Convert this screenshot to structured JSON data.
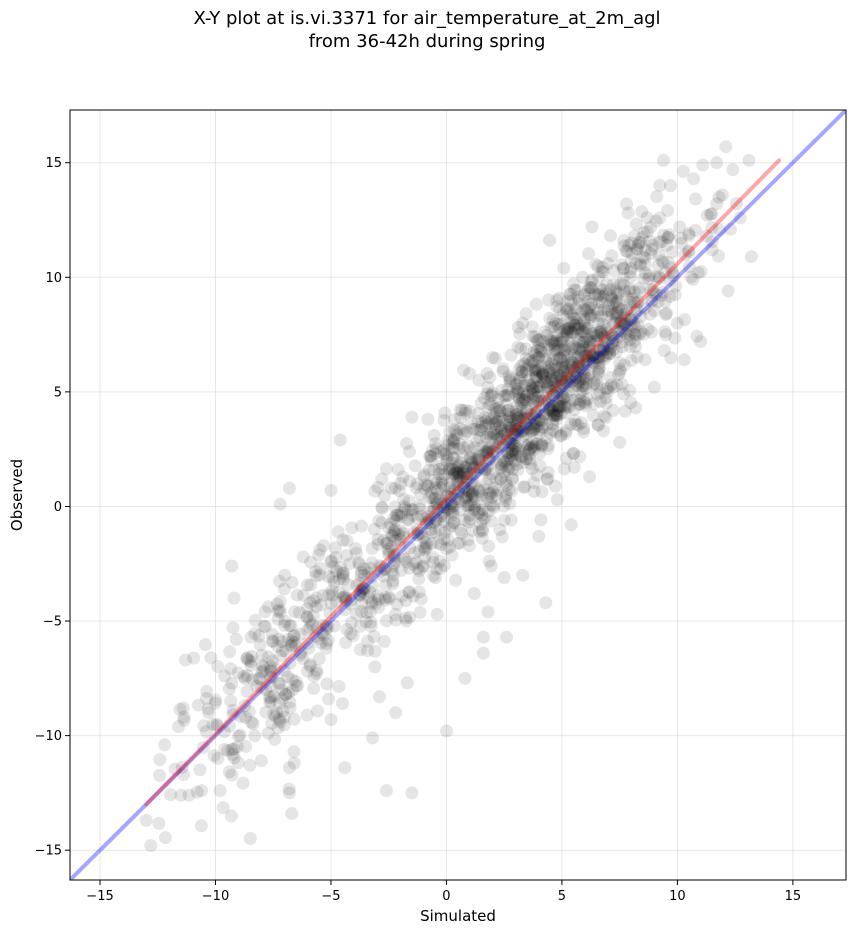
{
  "chart_data": {
    "type": "scatter",
    "title_lines": [
      "X-Y plot at is.vi.3371 for air_temperature_at_2m_agl",
      "from 36-42h during spring"
    ],
    "xlabel": "Simulated",
    "ylabel": "Observed",
    "xlim": [
      -16.3,
      17.3
    ],
    "ylim": [
      -16.3,
      17.3
    ],
    "xticks": [
      -15,
      -10,
      -5,
      0,
      5,
      10,
      15
    ],
    "yticks": [
      -15,
      -10,
      -5,
      0,
      5,
      10,
      15
    ],
    "tick_labels": [
      "−15",
      "−10",
      "−5",
      "0",
      "5",
      "10",
      "15"
    ],
    "grid": true,
    "point_color": "#000000",
    "point_alpha": 0.1,
    "point_count_approx": 1800,
    "sample_points": [
      {
        "x": -12.8,
        "y": -14.8
      },
      {
        "x": -13.0,
        "y": -13.7
      },
      {
        "x": -12.2,
        "y": -10.4
      },
      {
        "x": -11.5,
        "y": -12.6
      },
      {
        "x": -10.6,
        "y": -12.4
      },
      {
        "x": -9.8,
        "y": -12.4
      },
      {
        "x": -11.6,
        "y": -9.6
      },
      {
        "x": -9.6,
        "y": -10.6
      },
      {
        "x": -9.9,
        "y": -11.0
      },
      {
        "x": -10.3,
        "y": -9.0
      },
      {
        "x": -11.3,
        "y": -6.7
      },
      {
        "x": -10.2,
        "y": -6.6
      },
      {
        "x": -9.6,
        "y": -7.4
      },
      {
        "x": -9.1,
        "y": -5.8
      },
      {
        "x": -9.2,
        "y": -4.0
      },
      {
        "x": -9.3,
        "y": -2.6
      },
      {
        "x": -8.7,
        "y": -9.2
      },
      {
        "x": -8.3,
        "y": -10.0
      },
      {
        "x": -8.0,
        "y": -7.9
      },
      {
        "x": -7.6,
        "y": -7.2
      },
      {
        "x": -7.2,
        "y": -9.4
      },
      {
        "x": -7.1,
        "y": -6.3
      },
      {
        "x": -6.8,
        "y": -5.2
      },
      {
        "x": -6.8,
        "y": -11.4
      },
      {
        "x": -6.8,
        "y": -12.5
      },
      {
        "x": -6.7,
        "y": -13.4
      },
      {
        "x": -6.6,
        "y": -10.7
      },
      {
        "x": -7.0,
        "y": -3.0
      },
      {
        "x": -6.8,
        "y": 0.8
      },
      {
        "x": -7.2,
        "y": 0.1
      },
      {
        "x": -6.2,
        "y": -2.2
      },
      {
        "x": -5.9,
        "y": -4.2
      },
      {
        "x": -5.6,
        "y": -5.3
      },
      {
        "x": -5.1,
        "y": -8.4
      },
      {
        "x": -5.0,
        "y": -9.3
      },
      {
        "x": -4.5,
        "y": -8.6
      },
      {
        "x": -4.4,
        "y": -11.4
      },
      {
        "x": -4.6,
        "y": 2.9
      },
      {
        "x": -5.0,
        "y": 0.7
      },
      {
        "x": -4.3,
        "y": -1.5
      },
      {
        "x": -3.7,
        "y": -3.0
      },
      {
        "x": -3.3,
        "y": -4.6
      },
      {
        "x": -3.1,
        "y": -7.0
      },
      {
        "x": -3.2,
        "y": -10.1
      },
      {
        "x": -2.9,
        "y": -8.3
      },
      {
        "x": -2.6,
        "y": -12.4
      },
      {
        "x": -2.2,
        "y": -9.0
      },
      {
        "x": -1.7,
        "y": -7.7
      },
      {
        "x": -1.5,
        "y": -12.5
      },
      {
        "x": -2.8,
        "y": 1.2
      },
      {
        "x": -2.2,
        "y": -0.6
      },
      {
        "x": -1.6,
        "y": 2.4
      },
      {
        "x": -1.5,
        "y": 3.9
      },
      {
        "x": -1.0,
        "y": -2.6
      },
      {
        "x": -0.8,
        "y": 3.8
      },
      {
        "x": -0.4,
        "y": -4.7
      },
      {
        "x": 0.0,
        "y": -9.8
      },
      {
        "x": 0.8,
        "y": -7.5
      },
      {
        "x": 0.3,
        "y": 1.6
      },
      {
        "x": 0.6,
        "y": 3.4
      },
      {
        "x": 1.0,
        "y": 5.8
      },
      {
        "x": 1.2,
        "y": -3.8
      },
      {
        "x": 1.6,
        "y": -5.7
      },
      {
        "x": 1.6,
        "y": -6.4
      },
      {
        "x": 1.8,
        "y": -4.6
      },
      {
        "x": 1.5,
        "y": 4.5
      },
      {
        "x": 2.0,
        "y": 6.5
      },
      {
        "x": 2.3,
        "y": 2.8
      },
      {
        "x": 2.5,
        "y": -0.6
      },
      {
        "x": 2.5,
        "y": -3.1
      },
      {
        "x": 2.6,
        "y": -5.7
      },
      {
        "x": 2.8,
        "y": 6.6
      },
      {
        "x": 3.0,
        "y": 4.0
      },
      {
        "x": 3.1,
        "y": 1.6
      },
      {
        "x": 3.3,
        "y": 8.0
      },
      {
        "x": 3.3,
        "y": -3.0
      },
      {
        "x": 3.6,
        "y": 5.3
      },
      {
        "x": 3.8,
        "y": 2.5
      },
      {
        "x": 4.0,
        "y": -1.3
      },
      {
        "x": 4.3,
        "y": -4.2
      },
      {
        "x": 4.4,
        "y": 6.9
      },
      {
        "x": 4.6,
        "y": 3.6
      },
      {
        "x": 4.8,
        "y": 0.3
      },
      {
        "x": 4.9,
        "y": 8.6
      },
      {
        "x": 5.2,
        "y": 5.6
      },
      {
        "x": 5.4,
        "y": -0.8
      },
      {
        "x": 5.5,
        "y": 2.3
      },
      {
        "x": 5.7,
        "y": 7.3
      },
      {
        "x": 5.9,
        "y": 10.0
      },
      {
        "x": 6.0,
        "y": 4.5
      },
      {
        "x": 6.2,
        "y": 1.3
      },
      {
        "x": 6.3,
        "y": 12.2
      },
      {
        "x": 6.4,
        "y": 8.3
      },
      {
        "x": 6.6,
        "y": 6.0
      },
      {
        "x": 6.8,
        "y": 3.3
      },
      {
        "x": 7.0,
        "y": 10.6
      },
      {
        "x": 7.2,
        "y": 7.2
      },
      {
        "x": 7.4,
        "y": 5.3
      },
      {
        "x": 7.5,
        "y": 2.8
      },
      {
        "x": 7.7,
        "y": 9.4
      },
      {
        "x": 7.8,
        "y": 13.2
      },
      {
        "x": 7.9,
        "y": 11.4
      },
      {
        "x": 8.1,
        "y": 8.0
      },
      {
        "x": 8.2,
        "y": 4.3
      },
      {
        "x": 8.4,
        "y": 10.5
      },
      {
        "x": 8.6,
        "y": 6.4
      },
      {
        "x": 8.7,
        "y": 12.0
      },
      {
        "x": 8.9,
        "y": 9.0
      },
      {
        "x": 9.0,
        "y": 5.2
      },
      {
        "x": 9.2,
        "y": 11.0
      },
      {
        "x": 9.4,
        "y": 15.1
      },
      {
        "x": 9.5,
        "y": 7.5
      },
      {
        "x": 9.7,
        "y": 14.0
      },
      {
        "x": 9.8,
        "y": 10.2
      },
      {
        "x": 10.0,
        "y": 8.0
      },
      {
        "x": 10.1,
        "y": 12.2
      },
      {
        "x": 10.3,
        "y": 6.4
      },
      {
        "x": 10.5,
        "y": 11.1
      },
      {
        "x": 10.7,
        "y": 14.3
      },
      {
        "x": 10.9,
        "y": 10.2
      },
      {
        "x": 11.0,
        "y": 7.2
      },
      {
        "x": 11.1,
        "y": 14.9
      },
      {
        "x": 11.3,
        "y": 12.7
      },
      {
        "x": 11.5,
        "y": 11.2
      },
      {
        "x": 11.7,
        "y": 15.0
      },
      {
        "x": 11.8,
        "y": 13.5
      },
      {
        "x": 12.1,
        "y": 15.7
      },
      {
        "x": 12.2,
        "y": 9.4
      },
      {
        "x": 12.4,
        "y": 14.7
      },
      {
        "x": 12.3,
        "y": 12.1
      },
      {
        "x": 13.2,
        "y": 10.9
      },
      {
        "x": 13.1,
        "y": 15.1
      }
    ],
    "lines": [
      {
        "kind": "identity",
        "color": "#0000ff",
        "alpha": 0.35,
        "x": [
          -16.3,
          17.3
        ],
        "y": [
          -16.3,
          17.3
        ]
      },
      {
        "kind": "regression",
        "color": "#ff0000",
        "alpha": 0.35,
        "x": [
          -13.0,
          14.4
        ],
        "y": [
          -13.0,
          15.1
        ]
      }
    ]
  }
}
